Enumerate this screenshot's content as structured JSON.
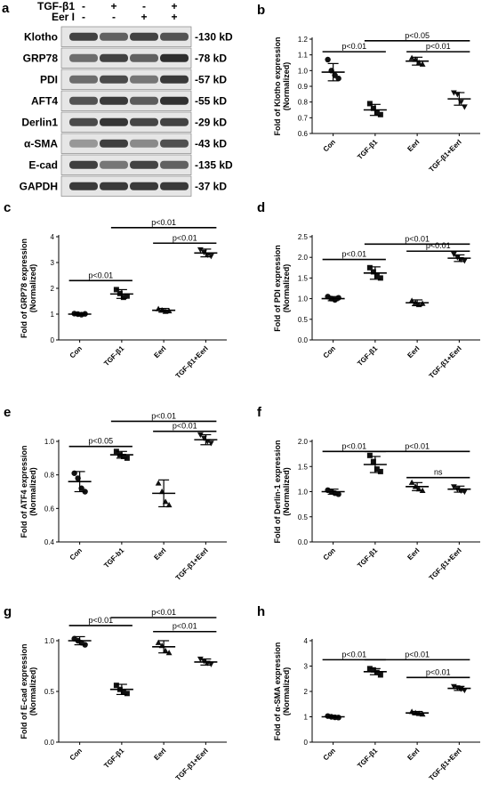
{
  "blot": {
    "panel_label": "a",
    "conditions": [
      {
        "label": "TGF-β1",
        "signs": [
          "-",
          "+",
          "-",
          "+"
        ]
      },
      {
        "label": "Eer I",
        "signs": [
          "-",
          "-",
          "+",
          "+"
        ]
      }
    ],
    "rows": [
      {
        "name": "Klotho",
        "size": "-130 kD",
        "intensity": [
          0.8,
          0.62,
          0.8,
          0.7
        ]
      },
      {
        "name": "GRP78",
        "size": "-78 kD",
        "intensity": [
          0.55,
          0.8,
          0.62,
          0.92
        ]
      },
      {
        "name": "PDI",
        "size": "-57 kD",
        "intensity": [
          0.55,
          0.75,
          0.5,
          0.85
        ]
      },
      {
        "name": "AFT4",
        "size": "-55 kD",
        "intensity": [
          0.7,
          0.85,
          0.65,
          0.9
        ]
      },
      {
        "name": "Derlin1",
        "size": "-29 kD",
        "intensity": [
          0.75,
          0.88,
          0.78,
          0.8
        ]
      },
      {
        "name": "α-SMA",
        "size": "-43 kD",
        "intensity": [
          0.3,
          0.82,
          0.38,
          0.72
        ]
      },
      {
        "name": "E-cad",
        "size": "-135 kD",
        "intensity": [
          0.82,
          0.5,
          0.8,
          0.62
        ]
      },
      {
        "name": "GAPDH",
        "size": "-37 kD",
        "intensity": [
          0.85,
          0.85,
          0.85,
          0.85
        ]
      }
    ]
  },
  "chart_data": [
    {
      "panel": "b",
      "type": "scatter",
      "ylabel": "Fold of Klotho expression",
      "ylabel2": "(Normalized)",
      "ylim": [
        0.6,
        1.2
      ],
      "yticks": [
        "0.6",
        "0.7",
        "0.8",
        "0.9",
        "1.0",
        "1.1",
        "1.2"
      ],
      "categories": [
        "Con",
        "TGF-β1",
        "EerI",
        "TGF-β1+EerI"
      ],
      "markers": [
        "circle",
        "square",
        "triangle",
        "triangle-down"
      ],
      "points": [
        [
          1.07,
          1.0,
          0.97,
          0.95
        ],
        [
          0.79,
          0.76,
          0.73,
          0.72
        ],
        [
          1.08,
          1.07,
          1.05,
          1.04
        ],
        [
          0.86,
          0.85,
          0.8,
          0.77
        ]
      ],
      "means": [
        0.99,
        0.75,
        1.06,
        0.82
      ],
      "errors": [
        0.055,
        0.035,
        0.025,
        0.04
      ],
      "comparisons": [
        {
          "from": 0,
          "to": 1,
          "label": "p<0.01",
          "y": 1.12
        },
        {
          "from": 1,
          "to": 3,
          "label": "p<0.05",
          "y": 1.19
        },
        {
          "from": 2,
          "to": 3,
          "label": "p<0.01",
          "y": 1.12
        }
      ]
    },
    {
      "panel": "c",
      "type": "scatter",
      "ylabel": "Fold of GRP78 expression",
      "ylabel2": "(Normalized)",
      "ylim": [
        0,
        4
      ],
      "yticks": [
        "0",
        "1",
        "2",
        "3",
        "4"
      ],
      "categories": [
        "Con",
        "TGF-β1",
        "EerI",
        "TGF-β1+EerI"
      ],
      "markers": [
        "circle",
        "square",
        "triangle",
        "triangle-down"
      ],
      "points": [
        [
          1.02,
          1.0,
          0.98,
          1.01
        ],
        [
          1.95,
          1.8,
          1.65,
          1.7
        ],
        [
          1.2,
          1.15,
          1.1,
          1.12
        ],
        [
          3.5,
          3.4,
          3.3,
          3.25
        ]
      ],
      "means": [
        1.0,
        1.78,
        1.15,
        3.37
      ],
      "errors": [
        0.04,
        0.17,
        0.07,
        0.15
      ],
      "comparisons": [
        {
          "from": 0,
          "to": 1,
          "label": "p<0.01",
          "y": 2.3
        },
        {
          "from": 1,
          "to": 3,
          "label": "p<0.01",
          "y": 4.35
        },
        {
          "from": 2,
          "to": 3,
          "label": "p<0.01",
          "y": 3.75
        }
      ]
    },
    {
      "panel": "d",
      "type": "scatter",
      "ylabel": "Fold of PDI expression",
      "ylabel2": "(Normalized)",
      "ylim": [
        0.0,
        2.5
      ],
      "yticks": [
        "0.0",
        "0.5",
        "1.0",
        "1.5",
        "2.0",
        "2.5"
      ],
      "categories": [
        "Con",
        "TGF-β1",
        "EerI",
        "TGF-β1+EerI"
      ],
      "markers": [
        "circle",
        "square",
        "triangle",
        "triangle-down"
      ],
      "points": [
        [
          1.05,
          1.0,
          0.97,
          1.02
        ],
        [
          1.75,
          1.65,
          1.55,
          1.5
        ],
        [
          0.95,
          0.9,
          0.85,
          0.88
        ],
        [
          2.08,
          2.0,
          1.95,
          1.92
        ]
      ],
      "means": [
        1.0,
        1.62,
        0.9,
        1.98
      ],
      "errors": [
        0.05,
        0.15,
        0.07,
        0.08
      ],
      "comparisons": [
        {
          "from": 0,
          "to": 1,
          "label": "p<0.01",
          "y": 1.95
        },
        {
          "from": 1,
          "to": 3,
          "label": "p<0.01",
          "y": 2.32
        },
        {
          "from": 2,
          "to": 3,
          "label": "p<0.01",
          "y": 2.15
        }
      ]
    },
    {
      "panel": "e",
      "type": "scatter",
      "ylabel": "Fold of ATF4 expression",
      "ylabel2": "(Normalized)",
      "ylim": [
        0.4,
        1.0
      ],
      "yticks": [
        "0.4",
        "0.6",
        "0.8",
        "1.0"
      ],
      "categories": [
        "Con",
        "TGF-b1",
        "EerI",
        "TGF-β1+EerI"
      ],
      "markers": [
        "circle",
        "square",
        "triangle",
        "triangle-down"
      ],
      "points": [
        [
          0.81,
          0.78,
          0.72,
          0.7
        ],
        [
          0.94,
          0.92,
          0.91,
          0.9
        ],
        [
          0.75,
          0.7,
          0.64,
          0.62
        ],
        [
          1.04,
          1.02,
          1.0,
          0.99
        ]
      ],
      "means": [
        0.76,
        0.92,
        0.69,
        1.01
      ],
      "errors": [
        0.06,
        0.02,
        0.08,
        0.03
      ],
      "comparisons": [
        {
          "from": 0,
          "to": 1,
          "label": "p<0.05",
          "y": 0.97
        },
        {
          "from": 1,
          "to": 3,
          "label": "p<0.01",
          "y": 1.12
        },
        {
          "from": 2,
          "to": 3,
          "label": "p<0.01",
          "y": 1.06
        }
      ]
    },
    {
      "panel": "f",
      "type": "scatter",
      "ylabel": "Fold of Derlin-1 expression",
      "ylabel2": "(Normalized)",
      "ylim": [
        0.0,
        2.0
      ],
      "yticks": [
        "0.0",
        "0.5",
        "1.0",
        "1.5",
        "2.0"
      ],
      "categories": [
        "Con",
        "TGF-β1",
        "EerI",
        "TGF-β1+EerI"
      ],
      "markers": [
        "circle",
        "square",
        "triangle",
        "triangle-down"
      ],
      "points": [
        [
          1.03,
          1.0,
          0.97,
          0.95
        ],
        [
          1.72,
          1.6,
          1.45,
          1.4
        ],
        [
          1.18,
          1.1,
          1.05,
          1.02
        ],
        [
          1.1,
          1.05,
          1.02,
          1.0
        ]
      ],
      "means": [
        1.0,
        1.54,
        1.1,
        1.05
      ],
      "errors": [
        0.05,
        0.16,
        0.08,
        0.06
      ],
      "comparisons": [
        {
          "from": 0,
          "to": 1,
          "label": "p<0.01",
          "y": 1.8
        },
        {
          "from": 1,
          "to": 3,
          "label": "p<0.01",
          "y": 1.8
        },
        {
          "from": 2,
          "to": 3,
          "label": "ns",
          "y": 1.28
        }
      ]
    },
    {
      "panel": "g",
      "type": "scatter",
      "ylabel": "Fold of E-cad expression",
      "ylabel2": "(Normalized)",
      "ylim": [
        0.0,
        1.0
      ],
      "yticks": [
        "0.0",
        "0.5",
        "1.0"
      ],
      "categories": [
        "Con",
        "TGF-β1",
        "EerI",
        "TGF-β1+EerI"
      ],
      "markers": [
        "circle",
        "square",
        "triangle",
        "triangle-down"
      ],
      "points": [
        [
          1.02,
          1.0,
          0.98,
          0.96
        ],
        [
          0.56,
          0.52,
          0.5,
          0.48
        ],
        [
          0.98,
          0.95,
          0.9,
          0.88
        ],
        [
          0.82,
          0.8,
          0.78,
          0.77
        ]
      ],
      "means": [
        1.0,
        0.52,
        0.94,
        0.79
      ],
      "errors": [
        0.04,
        0.05,
        0.06,
        0.03
      ],
      "comparisons": [
        {
          "from": 0,
          "to": 1,
          "label": "p<0.01",
          "y": 1.15
        },
        {
          "from": 1,
          "to": 3,
          "label": "p<0.01",
          "y": 1.42
        },
        {
          "from": 2,
          "to": 3,
          "label": "p<0.01",
          "y": 1.09
        }
      ]
    },
    {
      "panel": "h",
      "type": "scatter",
      "ylabel": "Fold of α-SMA expression",
      "ylabel2": "(Normalized)",
      "ylim": [
        0,
        4
      ],
      "yticks": [
        "0",
        "1",
        "2",
        "3",
        "4"
      ],
      "categories": [
        "Con",
        "TGF-β1",
        "EerI",
        "TGF-β1+EerI"
      ],
      "markers": [
        "circle",
        "square",
        "triangle",
        "triangle-down"
      ],
      "points": [
        [
          1.03,
          1.0,
          0.98,
          0.97
        ],
        [
          2.9,
          2.85,
          2.75,
          2.65
        ],
        [
          1.2,
          1.15,
          1.12,
          1.1
        ],
        [
          2.2,
          2.15,
          2.1,
          2.05
        ]
      ],
      "means": [
        1.0,
        2.78,
        1.15,
        2.12
      ],
      "errors": [
        0.04,
        0.12,
        0.06,
        0.08
      ],
      "comparisons": [
        {
          "from": 0,
          "to": 1,
          "label": "p<0.01",
          "y": 3.25
        },
        {
          "from": 1,
          "to": 3,
          "label": "p<0.01",
          "y": 3.25
        },
        {
          "from": 2,
          "to": 3,
          "label": "p<0.01",
          "y": 2.55
        }
      ]
    }
  ]
}
